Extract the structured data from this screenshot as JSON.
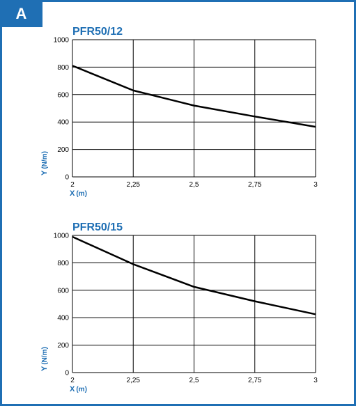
{
  "panel_label": "A",
  "colors": {
    "frame": "#1f6fb4",
    "line": "#000000",
    "grid": "#000000",
    "text_accent": "#1f6fb4"
  },
  "chart_data": [
    {
      "type": "line",
      "title": "PFR50/12",
      "xlabel": "X",
      "xunit": "(m)",
      "ylabel": "Y",
      "yunit": "(N/m)",
      "xlim": [
        2,
        3
      ],
      "ylim": [
        0,
        1000
      ],
      "xticks": [
        2,
        2.25,
        2.5,
        2.75,
        3
      ],
      "xtick_labels": [
        "2",
        "2,25",
        "2,5",
        "2,75",
        "3"
      ],
      "yticks": [
        0,
        200,
        400,
        600,
        800,
        1000
      ],
      "ytick_labels": [
        "0",
        "200",
        "400",
        "600",
        "800",
        "1000"
      ],
      "grid": true,
      "series": [
        {
          "x": [
            2,
            2.25,
            2.5,
            2.75,
            3
          ],
          "y": [
            810,
            630,
            520,
            440,
            365
          ]
        }
      ]
    },
    {
      "type": "line",
      "title": "PFR50/15",
      "xlabel": "X",
      "xunit": "(m)",
      "ylabel": "Y",
      "yunit": "(N/m)",
      "xlim": [
        2,
        3
      ],
      "ylim": [
        0,
        1000
      ],
      "xticks": [
        2,
        2.25,
        2.5,
        2.75,
        3
      ],
      "xtick_labels": [
        "2",
        "2,25",
        "2,5",
        "2,75",
        "3"
      ],
      "yticks": [
        0,
        200,
        400,
        600,
        800,
        1000
      ],
      "ytick_labels": [
        "0",
        "200",
        "400",
        "600",
        "800",
        "1000"
      ],
      "grid": true,
      "series": [
        {
          "x": [
            2,
            2.25,
            2.5,
            2.75,
            3
          ],
          "y": [
            990,
            790,
            625,
            520,
            425
          ]
        }
      ]
    }
  ]
}
